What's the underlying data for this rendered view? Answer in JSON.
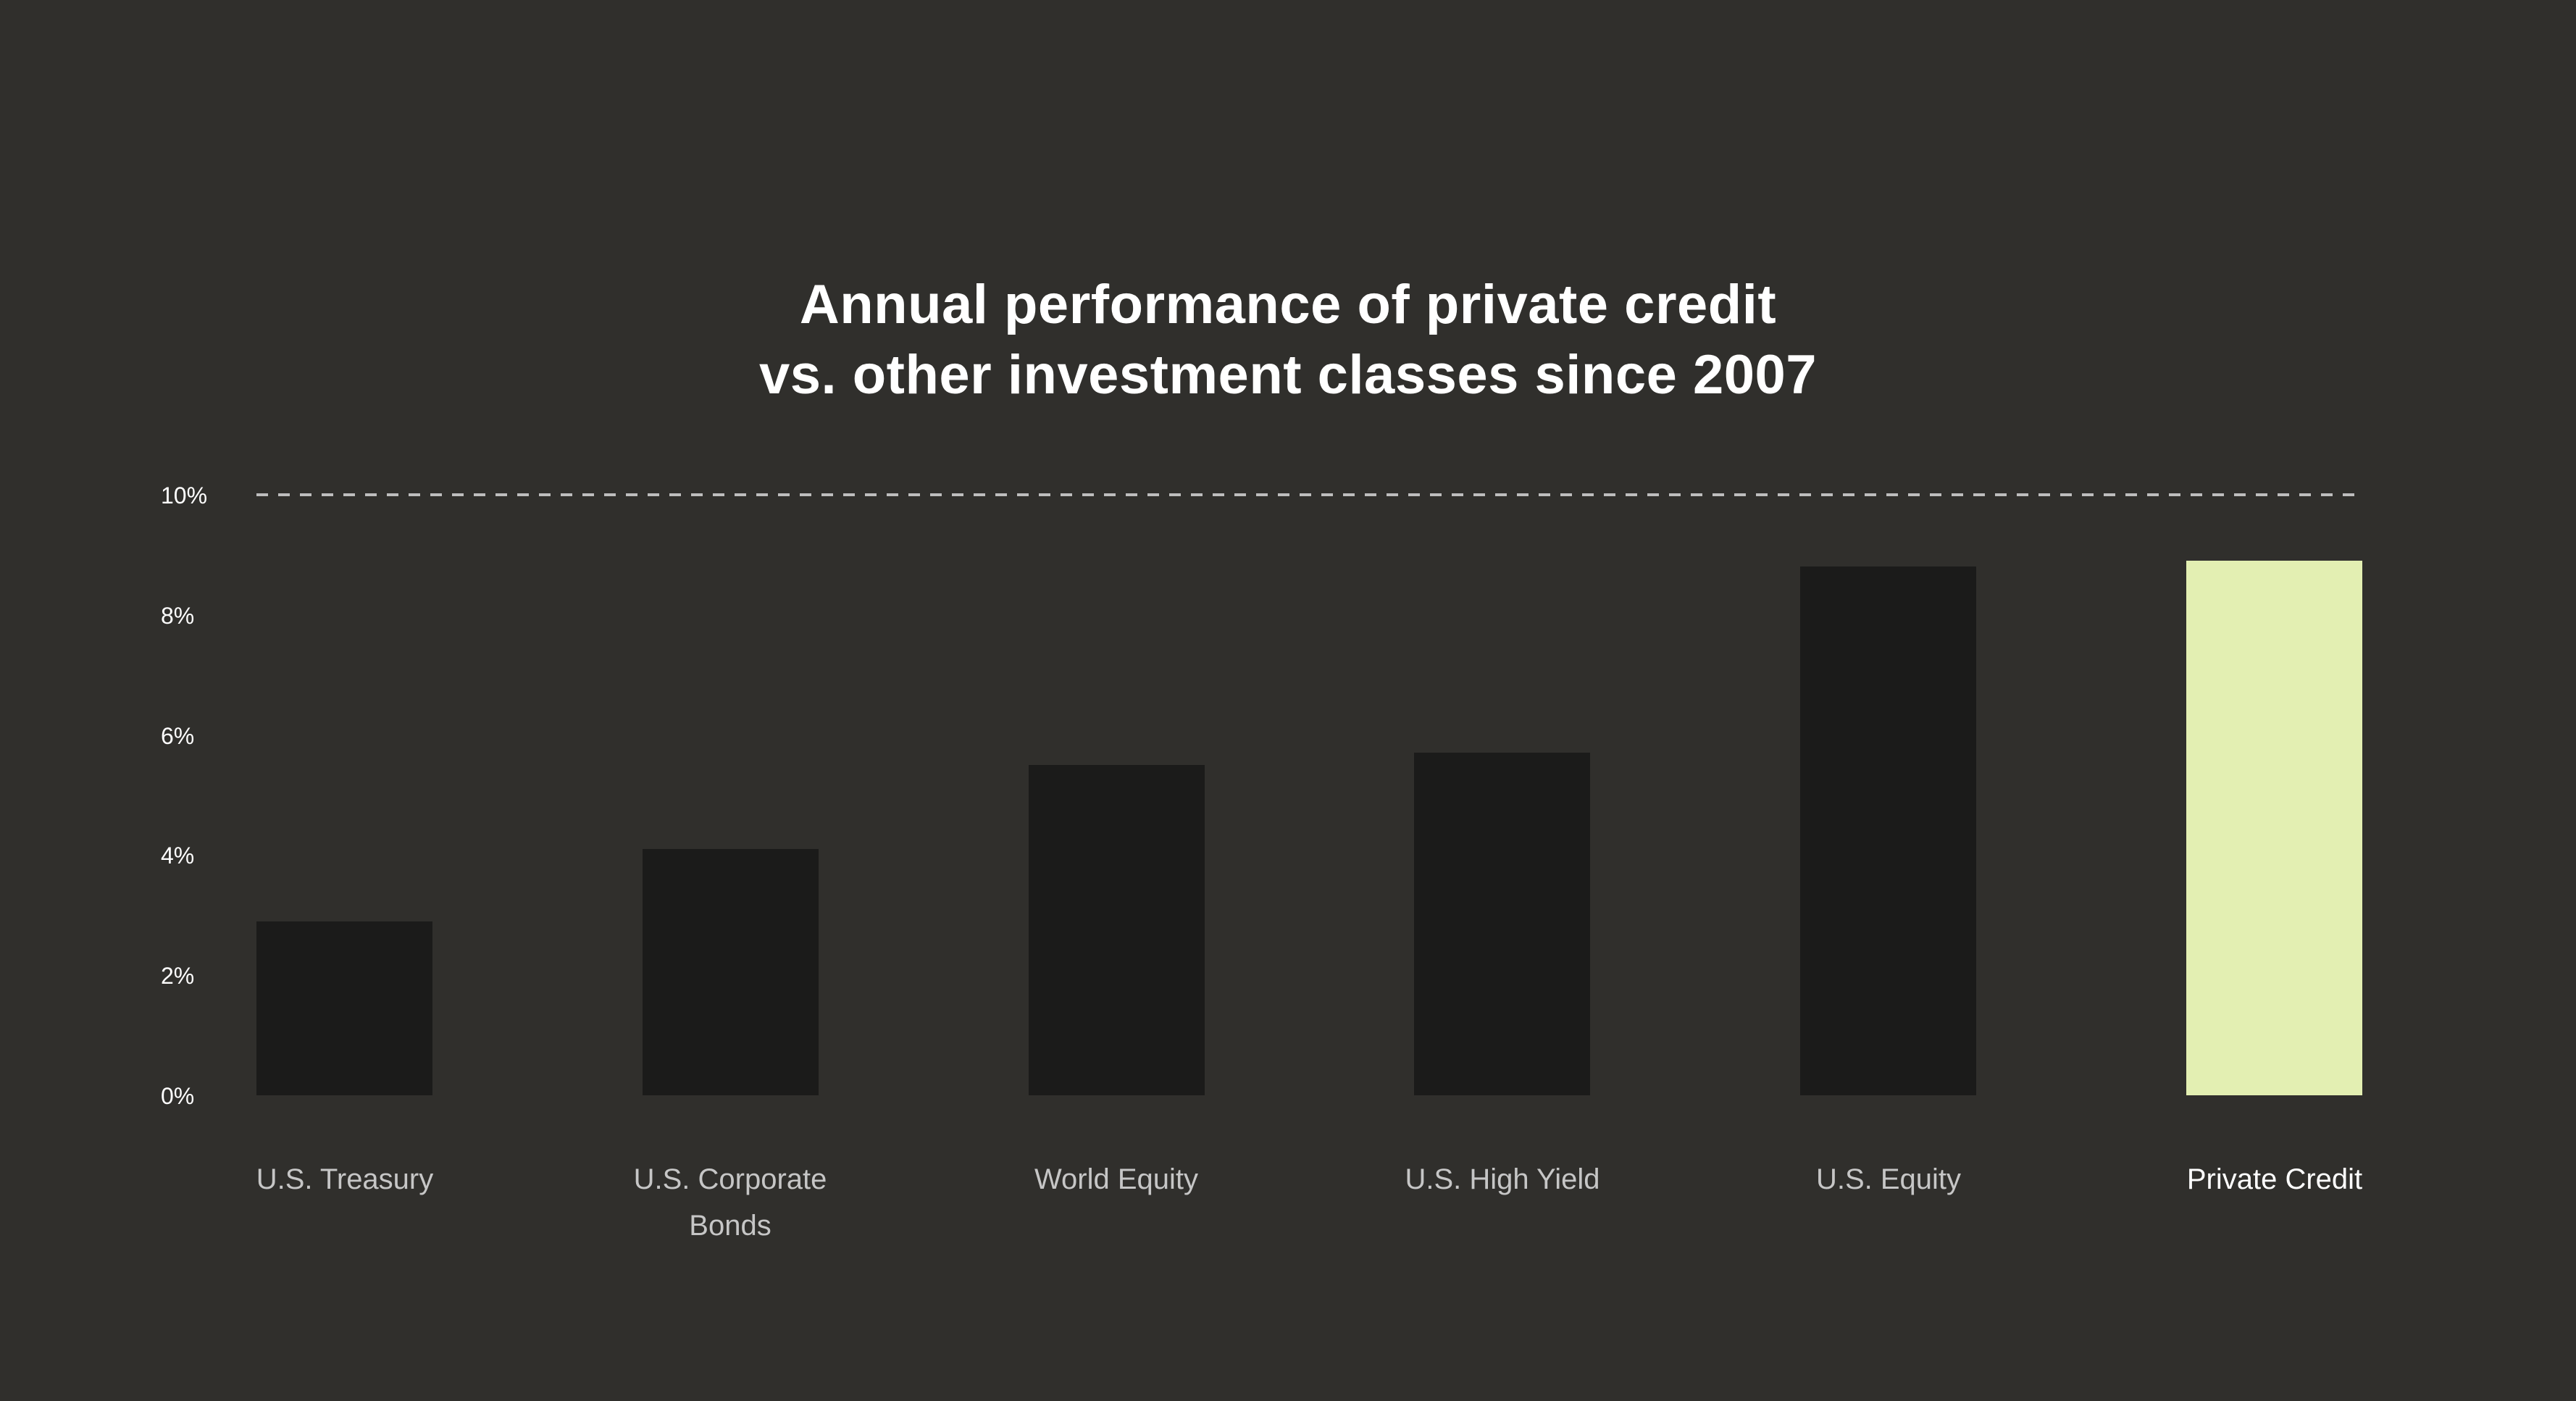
{
  "page": {
    "background": "#302f2c"
  },
  "title": {
    "line1": "Annual performance of private credit",
    "line2": "vs. other investment classes since 2007"
  },
  "chart_data": {
    "type": "bar",
    "title": "Annual performance of private credit vs. other investment classes since 2007",
    "categories": [
      "U.S. Treasury",
      "U.S. Corporate Bonds",
      "World Equity",
      "U.S. High Yield",
      "U.S. Equity",
      "Private Credit"
    ],
    "values": [
      2.9,
      4.1,
      5.5,
      5.7,
      8.8,
      8.9
    ],
    "unit": "%",
    "xlabel": "",
    "ylabel": "",
    "ylim": [
      0,
      10
    ],
    "ytick_values": [
      0,
      2,
      4,
      6,
      8,
      10
    ],
    "ytick_labels": [
      "0%",
      "2%",
      "4%",
      "6%",
      "8%",
      "10%"
    ],
    "reference_line": {
      "value": 10,
      "style": "dashed"
    },
    "highlight_index": 5,
    "highlight_category": "Private Credit",
    "grid": false,
    "legend": false
  },
  "colors": {
    "background": "#302f2c",
    "bar": "#1b1b1a",
    "bar_highlight": "#e3efb2",
    "category_label": "#c6c6c6",
    "category_label_highlight": "#ffffff",
    "tick_label": "#ffffff",
    "reference_line": "#bdbdbd",
    "title": "#ffffff"
  }
}
